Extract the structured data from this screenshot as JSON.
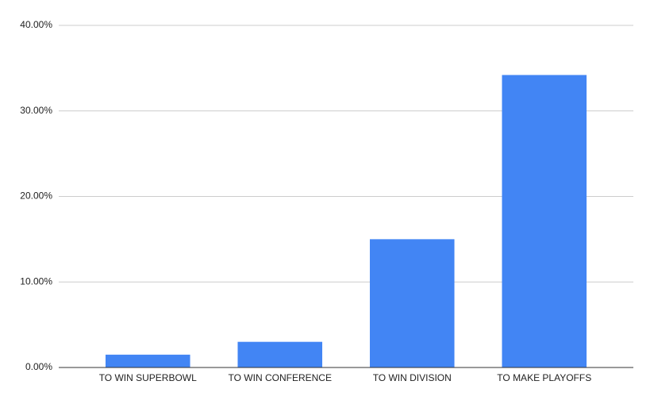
{
  "chart_data": {
    "type": "bar",
    "categories": [
      "TO WIN SUPERBOWL",
      "TO WIN CONFERENCE",
      "TO WIN DIVISION",
      "TO MAKE PLAYOFFS"
    ],
    "values": [
      1.5,
      3.0,
      15.0,
      34.2
    ],
    "color": "#4285f4",
    "ylim": [
      0,
      40
    ],
    "yticks": [
      {
        "value": 0,
        "label": "0.00%"
      },
      {
        "value": 10,
        "label": "10.00%"
      },
      {
        "value": 20,
        "label": "20.00%"
      },
      {
        "value": 30,
        "label": "30.00%"
      },
      {
        "value": 40,
        "label": "40.00%"
      }
    ],
    "grid": true
  }
}
